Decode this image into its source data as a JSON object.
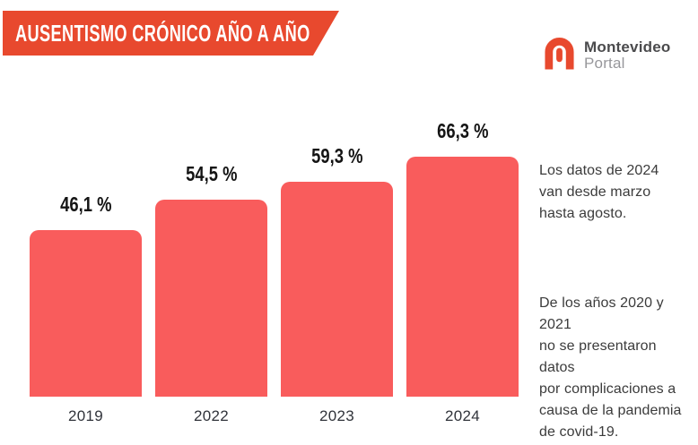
{
  "header": {
    "title": "AUSENTISMO CRÓNICO AÑO A AÑO",
    "banner_color": "#E8492E"
  },
  "logo": {
    "name": "Montevideo Portal",
    "line1": "Montevideo",
    "line2": "Portal",
    "icon_color": "#E8492E"
  },
  "chart_data": {
    "type": "bar",
    "title": "AUSENTISMO CRÓNICO AÑO A AÑO",
    "categories": [
      "2019",
      "2022",
      "2023",
      "2024"
    ],
    "values": [
      46.1,
      54.5,
      59.3,
      66.3
    ],
    "value_labels": [
      "46,1 %",
      "54,5 %",
      "59,3 %",
      "66,3 %"
    ],
    "xlabel": "",
    "ylabel": "",
    "ylim": [
      0,
      66.3
    ],
    "grid": false,
    "legend": false,
    "bar_color": "#F95C5C",
    "value_label_color": "#141414",
    "axis_label_color": "#30333A"
  },
  "annotations": {
    "note_2024": "Los datos de 2024\nvan desde marzo\nhasta agosto.",
    "note_pandemic": "De los años 2020 y 2021\nno se presentaron datos\npor complicaciones a\ncausa de la pandemia\nde covid-19."
  }
}
